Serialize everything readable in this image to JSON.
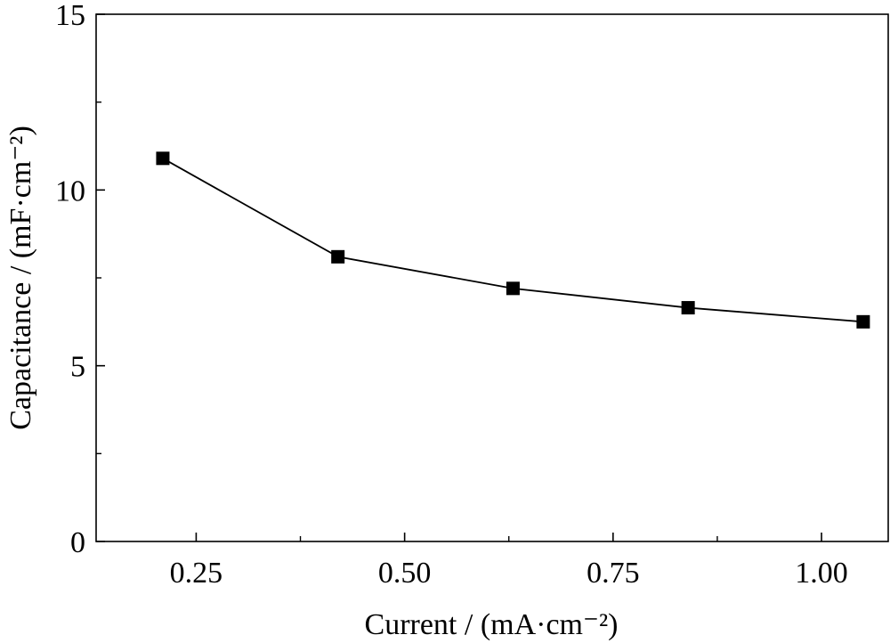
{
  "chart_data": {
    "type": "line",
    "xlabel": "Current / (mA·cm⁻²)",
    "ylabel": "Capacitance / (mF·cm⁻²)",
    "xlim": [
      0.13,
      1.08
    ],
    "ylim": [
      0,
      15
    ],
    "x_ticks": [
      0.25,
      0.5,
      0.75,
      1.0
    ],
    "x_tick_labels": [
      "0.25",
      "0.50",
      "0.75",
      "1.00"
    ],
    "y_ticks": [
      0,
      5,
      10,
      15
    ],
    "y_tick_labels": [
      "0",
      "5",
      "10",
      "15"
    ],
    "x_minor_ticks": [
      0.375,
      0.625,
      0.875
    ],
    "y_minor_ticks": [
      2.5,
      7.5,
      12.5
    ],
    "grid": false,
    "marker": "square",
    "line_color": "#000000",
    "series": [
      {
        "x": [
          0.21,
          0.42,
          0.63,
          0.84,
          1.05
        ],
        "y": [
          10.9,
          8.1,
          7.2,
          6.65,
          6.25
        ]
      }
    ]
  }
}
